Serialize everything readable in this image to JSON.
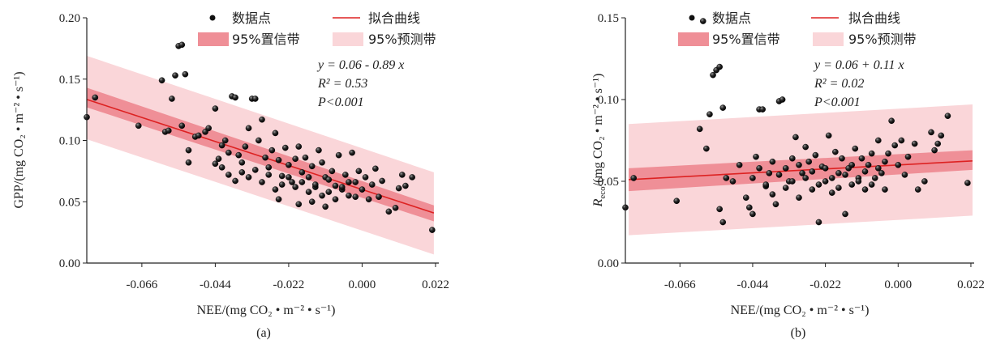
{
  "chart_data": [
    {
      "type": "scatter",
      "panel_label": "(a)",
      "xlabel": "NEE/(mg CO₂ • m⁻² • s⁻¹)",
      "ylabel": "GPP/(mg CO₂ • m⁻² • s⁻¹)",
      "xlim": [
        -0.0825,
        0.0225
      ],
      "ylim": [
        0.0,
        0.2
      ],
      "xticks": [
        "-0.066",
        "-0.044",
        "-0.022",
        "0.000",
        "0.022"
      ],
      "yticks": [
        "0.00",
        "0.05",
        "0.10",
        "0.15",
        "0.20"
      ],
      "legend": {
        "position": "top",
        "points_label": "数据点",
        "line_label": "拟合曲线",
        "ci_label": "95%置信带",
        "pi_label": "95%预测带"
      },
      "annotation": {
        "equation": "y = 0.06 - 0.89 x",
        "r2": "R² = 0.53",
        "p": "P<0.001"
      },
      "fit": {
        "intercept": 0.06,
        "slope": -0.89
      },
      "pi_band": {
        "x": [
          -0.0825,
          0.0215
        ],
        "upper": [
          0.169,
          0.074
        ],
        "lower": [
          0.101,
          0.007
        ]
      },
      "ci_band": {
        "x": [
          -0.0825,
          0.0215
        ],
        "upper": [
          0.143,
          0.047
        ],
        "lower": [
          0.127,
          0.034
        ]
      },
      "points": [
        [
          -0.0825,
          0.119
        ],
        [
          -0.08,
          0.135
        ],
        [
          -0.067,
          0.112
        ],
        [
          -0.06,
          0.149
        ],
        [
          -0.059,
          0.107
        ],
        [
          -0.058,
          0.108
        ],
        [
          -0.057,
          0.134
        ],
        [
          -0.056,
          0.153
        ],
        [
          -0.055,
          0.177
        ],
        [
          -0.054,
          0.178
        ],
        [
          -0.053,
          0.154
        ],
        [
          -0.054,
          0.112
        ],
        [
          -0.052,
          0.092
        ],
        [
          -0.052,
          0.082
        ],
        [
          -0.05,
          0.103
        ],
        [
          -0.049,
          0.104
        ],
        [
          -0.047,
          0.107
        ],
        [
          -0.046,
          0.11
        ],
        [
          -0.044,
          0.126
        ],
        [
          -0.043,
          0.085
        ],
        [
          -0.042,
          0.096
        ],
        [
          -0.041,
          0.1
        ],
        [
          -0.04,
          0.09
        ],
        [
          -0.039,
          0.136
        ],
        [
          -0.038,
          0.135
        ],
        [
          -0.037,
          0.088
        ],
        [
          -0.036,
          0.082
        ],
        [
          -0.035,
          0.095
        ],
        [
          -0.034,
          0.11
        ],
        [
          -0.033,
          0.134
        ],
        [
          -0.032,
          0.134
        ],
        [
          -0.031,
          0.1
        ],
        [
          -0.03,
          0.117
        ],
        [
          -0.029,
          0.086
        ],
        [
          -0.028,
          0.078
        ],
        [
          -0.027,
          0.092
        ],
        [
          -0.026,
          0.106
        ],
        [
          -0.025,
          0.084
        ],
        [
          -0.024,
          0.071
        ],
        [
          -0.023,
          0.094
        ],
        [
          -0.022,
          0.08
        ],
        [
          -0.021,
          0.066
        ],
        [
          -0.02,
          0.085
        ],
        [
          -0.019,
          0.095
        ],
        [
          -0.018,
          0.074
        ],
        [
          -0.017,
          0.086
        ],
        [
          -0.016,
          0.07
        ],
        [
          -0.015,
          0.079
        ],
        [
          -0.014,
          0.062
        ],
        [
          -0.013,
          0.092
        ],
        [
          -0.012,
          0.082
        ],
        [
          -0.011,
          0.07
        ],
        [
          -0.01,
          0.058
        ],
        [
          -0.009,
          0.075
        ],
        [
          -0.008,
          0.063
        ],
        [
          -0.007,
          0.088
        ],
        [
          -0.006,
          0.06
        ],
        [
          -0.005,
          0.072
        ],
        [
          -0.004,
          0.055
        ],
        [
          -0.003,
          0.09
        ],
        [
          -0.002,
          0.066
        ],
        [
          -0.001,
          0.075
        ],
        [
          0.0,
          0.06
        ],
        [
          0.001,
          0.07
        ],
        [
          0.002,
          0.052
        ],
        [
          0.003,
          0.064
        ],
        [
          0.004,
          0.077
        ],
        [
          0.005,
          0.054
        ],
        [
          0.006,
          0.067
        ],
        [
          0.008,
          0.042
        ],
        [
          0.01,
          0.045
        ],
        [
          0.011,
          0.061
        ],
        [
          0.012,
          0.072
        ],
        [
          0.013,
          0.063
        ],
        [
          0.015,
          0.07
        ],
        [
          0.021,
          0.027
        ],
        [
          -0.044,
          0.081
        ],
        [
          -0.042,
          0.078
        ],
        [
          -0.04,
          0.072
        ],
        [
          -0.038,
          0.067
        ],
        [
          -0.036,
          0.074
        ],
        [
          -0.034,
          0.07
        ],
        [
          -0.032,
          0.076
        ],
        [
          -0.03,
          0.066
        ],
        [
          -0.028,
          0.072
        ],
        [
          -0.026,
          0.06
        ],
        [
          -0.024,
          0.064
        ],
        [
          -0.022,
          0.07
        ],
        [
          -0.02,
          0.062
        ],
        [
          -0.018,
          0.066
        ],
        [
          -0.016,
          0.058
        ],
        [
          -0.014,
          0.064
        ],
        [
          -0.012,
          0.055
        ],
        [
          -0.01,
          0.068
        ],
        [
          -0.008,
          0.052
        ],
        [
          -0.006,
          0.062
        ],
        [
          -0.004,
          0.066
        ],
        [
          -0.002,
          0.054
        ],
        [
          -0.025,
          0.052
        ],
        [
          -0.019,
          0.048
        ],
        [
          -0.015,
          0.05
        ],
        [
          -0.011,
          0.046
        ]
      ]
    },
    {
      "type": "scatter",
      "panel_label": "(b)",
      "xlabel": "NEE/(mg CO₂ • m⁻² • s⁻¹)",
      "ylabel_main": "R",
      "ylabel_sub": "eco",
      "ylabel_rest": "/(mg CO₂ • m⁻² • s⁻¹)",
      "xlim": [
        -0.0825,
        0.0225
      ],
      "ylim": [
        0.0,
        0.15
      ],
      "xticks": [
        "-0.066",
        "-0.044",
        "-0.022",
        "0.000",
        "0.022"
      ],
      "yticks": [
        "0.00",
        "0.05",
        "0.10",
        "0.15"
      ],
      "legend": {
        "position": "top",
        "points_label": "数据点",
        "line_label": "拟合曲线",
        "ci_label": "95%置信带",
        "pi_label": "95%预测带"
      },
      "annotation": {
        "equation": "y = 0.06 + 0.11 x",
        "r2": "R² = 0.02",
        "p": "P<0.001"
      },
      "fit": {
        "intercept": 0.06,
        "slope": 0.11
      },
      "pi_band": {
        "x": [
          -0.0815,
          0.0225
        ],
        "upper": [
          0.085,
          0.097
        ],
        "lower": [
          0.017,
          0.029
        ]
      },
      "ci_band": {
        "x": [
          -0.0815,
          0.0225
        ],
        "upper": [
          0.058,
          0.069
        ],
        "lower": [
          0.044,
          0.057
        ]
      },
      "points": [
        [
          -0.0825,
          0.034
        ],
        [
          -0.08,
          0.052
        ],
        [
          -0.067,
          0.038
        ],
        [
          -0.06,
          0.082
        ],
        [
          -0.059,
          0.148
        ],
        [
          -0.058,
          0.07
        ],
        [
          -0.057,
          0.091
        ],
        [
          -0.056,
          0.115
        ],
        [
          -0.055,
          0.118
        ],
        [
          -0.054,
          0.12
        ],
        [
          -0.053,
          0.095
        ],
        [
          -0.054,
          0.033
        ],
        [
          -0.053,
          0.025
        ],
        [
          -0.052,
          0.052
        ],
        [
          -0.05,
          0.05
        ],
        [
          -0.048,
          0.06
        ],
        [
          -0.046,
          0.04
        ],
        [
          -0.045,
          0.034
        ],
        [
          -0.044,
          0.03
        ],
        [
          -0.043,
          0.065
        ],
        [
          -0.042,
          0.094
        ],
        [
          -0.041,
          0.094
        ],
        [
          -0.04,
          0.047
        ],
        [
          -0.039,
          0.055
        ],
        [
          -0.038,
          0.042
        ],
        [
          -0.037,
          0.036
        ],
        [
          -0.036,
          0.099
        ],
        [
          -0.035,
          0.1
        ],
        [
          -0.034,
          0.046
        ],
        [
          -0.033,
          0.05
        ],
        [
          -0.032,
          0.064
        ],
        [
          -0.031,
          0.077
        ],
        [
          -0.03,
          0.04
        ],
        [
          -0.029,
          0.055
        ],
        [
          -0.028,
          0.071
        ],
        [
          -0.027,
          0.062
        ],
        [
          -0.026,
          0.045
        ],
        [
          -0.025,
          0.066
        ],
        [
          -0.024,
          0.025
        ],
        [
          -0.023,
          0.059
        ],
        [
          -0.022,
          0.05
        ],
        [
          -0.021,
          0.078
        ],
        [
          -0.02,
          0.043
        ],
        [
          -0.019,
          0.068
        ],
        [
          -0.018,
          0.055
        ],
        [
          -0.017,
          0.064
        ],
        [
          -0.016,
          0.03
        ],
        [
          -0.015,
          0.058
        ],
        [
          -0.014,
          0.048
        ],
        [
          -0.013,
          0.07
        ],
        [
          -0.012,
          0.052
        ],
        [
          -0.011,
          0.064
        ],
        [
          -0.01,
          0.045
        ],
        [
          -0.009,
          0.06
        ],
        [
          -0.008,
          0.067
        ],
        [
          -0.007,
          0.052
        ],
        [
          -0.006,
          0.075
        ],
        [
          -0.005,
          0.055
        ],
        [
          -0.004,
          0.045
        ],
        [
          -0.003,
          0.067
        ],
        [
          -0.002,
          0.087
        ],
        [
          -0.001,
          0.072
        ],
        [
          0.0,
          0.06
        ],
        [
          0.001,
          0.075
        ],
        [
          0.002,
          0.054
        ],
        [
          0.003,
          0.065
        ],
        [
          0.005,
          0.073
        ],
        [
          0.006,
          0.045
        ],
        [
          0.008,
          0.05
        ],
        [
          0.01,
          0.08
        ],
        [
          0.011,
          0.069
        ],
        [
          0.012,
          0.073
        ],
        [
          0.013,
          0.078
        ],
        [
          0.015,
          0.09
        ],
        [
          0.021,
          0.049
        ],
        [
          -0.044,
          0.052
        ],
        [
          -0.042,
          0.058
        ],
        [
          -0.04,
          0.048
        ],
        [
          -0.038,
          0.062
        ],
        [
          -0.036,
          0.054
        ],
        [
          -0.034,
          0.058
        ],
        [
          -0.032,
          0.05
        ],
        [
          -0.03,
          0.06
        ],
        [
          -0.028,
          0.052
        ],
        [
          -0.026,
          0.056
        ],
        [
          -0.024,
          0.048
        ],
        [
          -0.022,
          0.058
        ],
        [
          -0.02,
          0.052
        ],
        [
          -0.018,
          0.046
        ],
        [
          -0.016,
          0.054
        ],
        [
          -0.014,
          0.06
        ],
        [
          -0.012,
          0.05
        ],
        [
          -0.01,
          0.056
        ],
        [
          -0.008,
          0.048
        ],
        [
          -0.006,
          0.058
        ],
        [
          -0.004,
          0.062
        ]
      ]
    }
  ]
}
